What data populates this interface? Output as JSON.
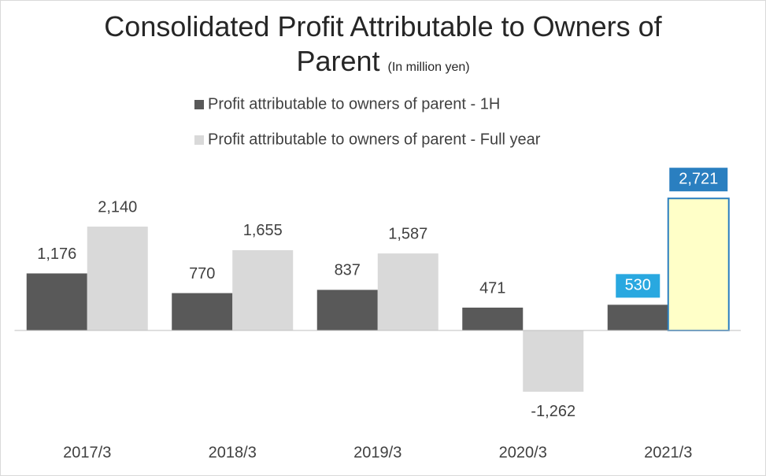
{
  "chart_data": {
    "type": "bar",
    "title": "Consolidated Profit Attributable to Owners of Parent",
    "subtitle": "(In million yen)",
    "categories": [
      "2017/3",
      "2018/3",
      "2019/3",
      "2020/3",
      "2021/3"
    ],
    "series": [
      {
        "name": "Profit attributable to owners of parent - 1H",
        "color": "#595959",
        "values": [
          1176,
          770,
          837,
          471,
          530
        ],
        "value_labels": [
          "1,176",
          "770",
          "837",
          "471",
          "530"
        ]
      },
      {
        "name": "Profit attributable to owners of parent - Full year",
        "color": "#d9d9d9",
        "values": [
          2140,
          1655,
          1587,
          -1262,
          2721
        ],
        "value_labels": [
          "2,140",
          "1,655",
          "1,587",
          "-1,262",
          "2,721"
        ]
      }
    ],
    "ylim": [
      -2000,
      3000
    ],
    "highlight_index": 4,
    "highlight_label_colors": [
      "#29a8e0",
      "#2a7fc0"
    ],
    "highlight_bar_fill": "#ffffc8",
    "highlight_bar_stroke": "#2a7fc0",
    "legend": "top"
  }
}
